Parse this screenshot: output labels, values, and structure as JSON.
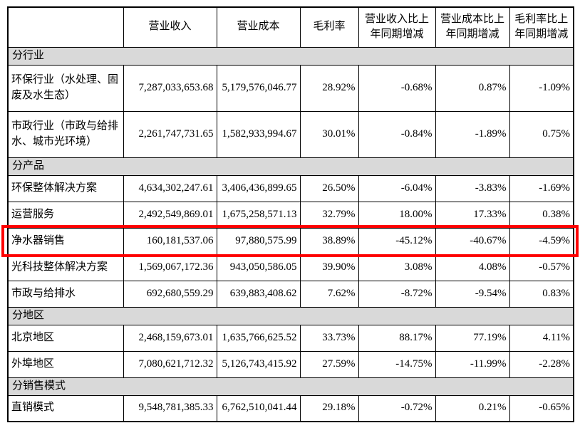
{
  "colors": {
    "section_bg": "#d9d9d9",
    "table_border": "#000000",
    "highlight_border": "#fe0000"
  },
  "table": {
    "headers": [
      "",
      "营业收入",
      "营业成本",
      "毛利率",
      "营业收入比上年同期增减",
      "营业成本比上年同期增减",
      "毛利率比上年同期增减"
    ],
    "sections": [
      {
        "title": "分行业",
        "rows": [
          {
            "label": "环保行业（水处理、固废及水生态）",
            "tall": true,
            "highlighted": false,
            "values": [
              "7,287,033,653.68",
              "5,179,576,046.77",
              "28.92%",
              "-0.68%",
              "0.87%",
              "-1.09%"
            ]
          },
          {
            "label": "市政行业（市政与给排水、城市光环境）",
            "tall": true,
            "highlighted": false,
            "values": [
              "2,261,747,731.65",
              "1,582,933,994.67",
              "30.01%",
              "-0.84%",
              "-1.89%",
              "0.75%"
            ]
          }
        ]
      },
      {
        "title": "分产品",
        "rows": [
          {
            "label": "环保整体解决方案",
            "tall": false,
            "highlighted": false,
            "values": [
              "4,634,302,247.61",
              "3,406,436,899.65",
              "26.50%",
              "-6.04%",
              "-3.83%",
              "-1.69%"
            ]
          },
          {
            "label": "运营服务",
            "tall": false,
            "highlighted": false,
            "values": [
              "2,492,549,869.01",
              "1,675,258,571.13",
              "32.79%",
              "18.00%",
              "17.33%",
              "0.38%"
            ]
          },
          {
            "label": "净水器销售",
            "tall": false,
            "highlighted": true,
            "values": [
              "160,181,537.06",
              "97,880,575.99",
              "38.89%",
              "-45.12%",
              "-40.67%",
              "-4.59%"
            ]
          },
          {
            "label": "光科技整体解决方案",
            "tall": false,
            "highlighted": false,
            "values": [
              "1,569,067,172.36",
              "943,050,586.05",
              "39.90%",
              "3.08%",
              "4.08%",
              "-0.57%"
            ]
          },
          {
            "label": "市政与给排水",
            "tall": false,
            "highlighted": false,
            "values": [
              "692,680,559.29",
              "639,883,408.62",
              "7.62%",
              "-8.72%",
              "-9.54%",
              "0.83%"
            ]
          }
        ]
      },
      {
        "title": "分地区",
        "rows": [
          {
            "label": "北京地区",
            "tall": false,
            "highlighted": false,
            "values": [
              "2,468,159,673.01",
              "1,635,766,625.52",
              "33.73%",
              "88.17%",
              "77.19%",
              "4.11%"
            ]
          },
          {
            "label": "外埠地区",
            "tall": false,
            "highlighted": false,
            "values": [
              "7,080,621,712.32",
              "5,126,743,415.92",
              "27.59%",
              "-14.75%",
              "-11.99%",
              "-2.28%"
            ]
          }
        ]
      },
      {
        "title": "分销售模式",
        "rows": [
          {
            "label": "直销模式",
            "tall": false,
            "highlighted": false,
            "values": [
              "9,548,781,385.33",
              "6,762,510,041.44",
              "29.18%",
              "-0.72%",
              "0.21%",
              "-0.65%"
            ]
          }
        ]
      }
    ]
  }
}
